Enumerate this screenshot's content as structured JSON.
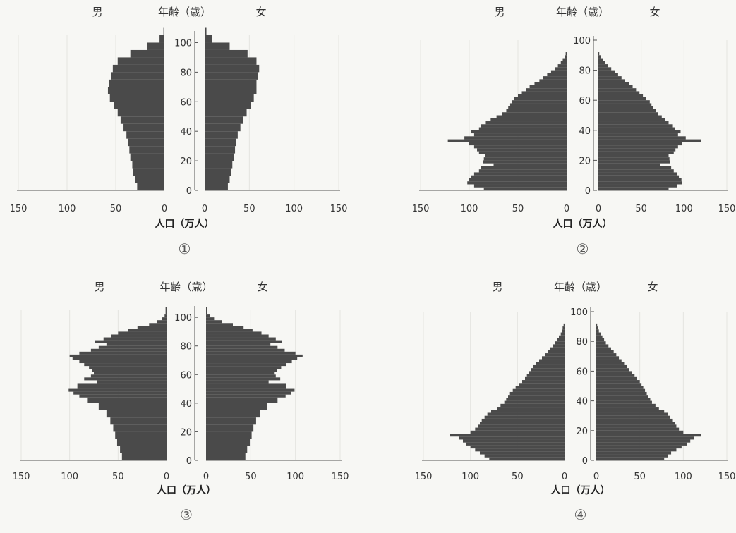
{
  "chart_data": [
    {
      "type": "population-pyramid",
      "label": "①",
      "headers": {
        "left": "男",
        "center": "年齢（歳）",
        "right": "女"
      },
      "xlabel": "人口（万人）",
      "xticks": [
        150,
        100,
        50,
        0
      ],
      "yticks": [
        0,
        20,
        40,
        60,
        80,
        100
      ],
      "xlim": [
        0,
        150
      ],
      "ylim": [
        0,
        105
      ],
      "ages": [
        0,
        5,
        10,
        15,
        20,
        25,
        30,
        35,
        40,
        45,
        50,
        55,
        60,
        65,
        70,
        75,
        80,
        85,
        90,
        95,
        100,
        105
      ],
      "series": [
        {
          "name": "男",
          "values": [
            28,
            30,
            32,
            33,
            35,
            36,
            37,
            39,
            42,
            45,
            48,
            52,
            56,
            58,
            57,
            55,
            53,
            48,
            35,
            18,
            5,
            1
          ]
        },
        {
          "name": "女",
          "values": [
            26,
            28,
            30,
            31,
            33,
            34,
            35,
            37,
            40,
            43,
            47,
            52,
            55,
            58,
            58,
            60,
            61,
            58,
            48,
            28,
            8,
            2
          ]
        }
      ]
    },
    {
      "type": "population-pyramid",
      "label": "②",
      "headers": {
        "left": "男",
        "center": "年齢（歳）",
        "right": "女"
      },
      "xlabel": "人口（万人）",
      "xticks": [
        150,
        100,
        50,
        0
      ],
      "xticks_right": [
        0,
        50,
        100,
        150
      ],
      "yticks": [
        0,
        20,
        40,
        60,
        80,
        100
      ],
      "xlim": [
        0,
        150
      ],
      "ylim": [
        0,
        100
      ],
      "ages": [
        0,
        2,
        4,
        6,
        8,
        10,
        12,
        14,
        16,
        18,
        20,
        22,
        24,
        26,
        28,
        30,
        32,
        34,
        36,
        38,
        40,
        42,
        44,
        46,
        48,
        50,
        52,
        54,
        56,
        58,
        60,
        62,
        64,
        66,
        68,
        70,
        72,
        74,
        76,
        78,
        80,
        82,
        84,
        86,
        88,
        90
      ],
      "series": [
        {
          "name": "男",
          "values": [
            85,
            95,
            102,
            100,
            98,
            95,
            90,
            88,
            75,
            86,
            85,
            84,
            90,
            92,
            95,
            100,
            122,
            105,
            95,
            98,
            90,
            88,
            83,
            78,
            72,
            66,
            62,
            60,
            58,
            56,
            54,
            50,
            46,
            42,
            38,
            33,
            28,
            24,
            20,
            16,
            12,
            9,
            6,
            4,
            2,
            1
          ]
        },
        {
          "name": "女",
          "values": [
            82,
            92,
            98,
            97,
            94,
            92,
            88,
            85,
            72,
            84,
            83,
            82,
            88,
            90,
            93,
            98,
            120,
            102,
            93,
            96,
            89,
            87,
            82,
            78,
            74,
            70,
            67,
            64,
            62,
            60,
            56,
            52,
            48,
            44,
            40,
            36,
            31,
            27,
            23,
            19,
            15,
            11,
            8,
            5,
            3,
            1
          ]
        }
      ]
    },
    {
      "type": "population-pyramid",
      "label": "③",
      "headers": {
        "left": "男",
        "center": "年齢（歳）",
        "right": "女"
      },
      "xlabel": "人口（万人）",
      "xticks": [
        150,
        100,
        50,
        0
      ],
      "xticks_right": [
        0,
        50,
        100,
        150
      ],
      "yticks": [
        0,
        20,
        40,
        60,
        80,
        100
      ],
      "xlim": [
        0,
        150
      ],
      "ylim": [
        0,
        105
      ],
      "ages": [
        0,
        5,
        10,
        15,
        20,
        25,
        30,
        35,
        40,
        44,
        46,
        48,
        50,
        54,
        56,
        58,
        60,
        62,
        64,
        66,
        68,
        70,
        72,
        74,
        76,
        78,
        80,
        82,
        84,
        86,
        88,
        90,
        92,
        94,
        96,
        98,
        100,
        102
      ],
      "series": [
        {
          "name": "男",
          "values": [
            46,
            48,
            51,
            53,
            55,
            58,
            62,
            70,
            82,
            90,
            96,
            101,
            92,
            72,
            85,
            78,
            75,
            77,
            80,
            85,
            90,
            97,
            100,
            90,
            78,
            70,
            62,
            74,
            65,
            57,
            50,
            40,
            30,
            18,
            10,
            5,
            2,
            1
          ]
        },
        {
          "name": "女",
          "values": [
            44,
            46,
            49,
            51,
            53,
            56,
            60,
            68,
            80,
            89,
            95,
            99,
            90,
            70,
            83,
            78,
            76,
            79,
            84,
            90,
            96,
            102,
            108,
            100,
            88,
            80,
            72,
            85,
            78,
            70,
            62,
            52,
            42,
            30,
            18,
            9,
            4,
            1
          ]
        }
      ]
    },
    {
      "type": "population-pyramid",
      "label": "④",
      "headers": {
        "left": "男",
        "center": "年齢（歳）",
        "right": "女"
      },
      "xlabel": "人口（万人）",
      "xticks": [
        150,
        100,
        50,
        0
      ],
      "xticks_right": [
        0,
        50,
        100,
        150
      ],
      "yticks": [
        0,
        20,
        40,
        60,
        80,
        100
      ],
      "xlim": [
        0,
        150
      ],
      "ylim": [
        0,
        100
      ],
      "ages": [
        0,
        2,
        4,
        6,
        8,
        10,
        12,
        14,
        16,
        18,
        20,
        22,
        24,
        26,
        28,
        30,
        32,
        34,
        36,
        38,
        40,
        42,
        44,
        46,
        48,
        50,
        52,
        54,
        56,
        58,
        60,
        62,
        64,
        66,
        68,
        70,
        72,
        74,
        76,
        78,
        80,
        82,
        84,
        86,
        88,
        90
      ],
      "series": [
        {
          "name": "男",
          "values": [
            80,
            85,
            90,
            95,
            100,
            105,
            108,
            112,
            122,
            100,
            95,
            92,
            90,
            88,
            85,
            82,
            78,
            72,
            68,
            64,
            62,
            60,
            58,
            55,
            52,
            48,
            45,
            42,
            40,
            38,
            36,
            33,
            30,
            27,
            24,
            21,
            18,
            15,
            12,
            10,
            8,
            6,
            4,
            3,
            2,
            1
          ]
        },
        {
          "name": "女",
          "values": [
            78,
            82,
            86,
            92,
            98,
            104,
            108,
            112,
            120,
            100,
            95,
            92,
            90,
            88,
            85,
            82,
            78,
            72,
            68,
            64,
            62,
            60,
            58,
            56,
            54,
            52,
            50,
            47,
            44,
            41,
            38,
            35,
            32,
            29,
            26,
            23,
            20,
            17,
            14,
            11,
            9,
            7,
            5,
            3,
            2,
            1
          ]
        }
      ]
    }
  ]
}
